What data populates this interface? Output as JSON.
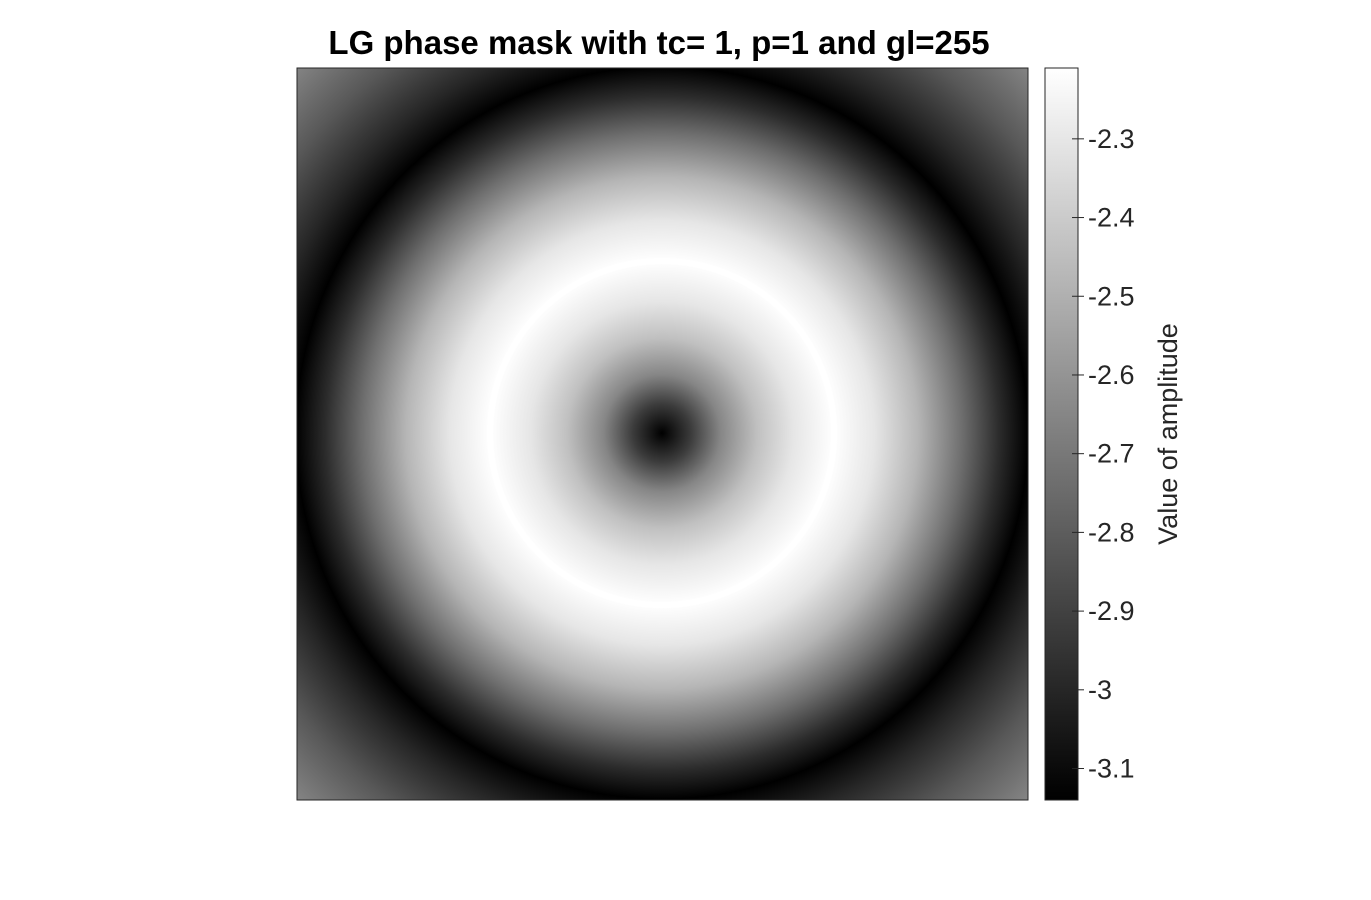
{
  "chart_data": {
    "type": "heatmap",
    "title": "LG phase mask with tc= 1, p=1 and gl=255",
    "colormap": "gray",
    "colorbar": {
      "label": "Value of amplitude",
      "range": [
        -3.14,
        -2.21
      ],
      "ticks": [
        -2.3,
        -2.4,
        -2.5,
        -2.6,
        -2.7,
        -2.8,
        -2.9,
        -3,
        -3.1
      ],
      "tick_labels": [
        "-2.3",
        "-2.4",
        "-2.5",
        "-2.6",
        "-2.7",
        "-2.8",
        "-2.9",
        "-3",
        "-3.1"
      ]
    },
    "pattern": {
      "description": "radially symmetric rings",
      "center_value": -3.14,
      "peak_value": -2.21,
      "peak_radius_fraction": 0.47,
      "dark_ring_value": -3.14,
      "dark_ring_radius_fraction": 1.0,
      "corner_value": -2.65
    },
    "axes_visible": false
  }
}
